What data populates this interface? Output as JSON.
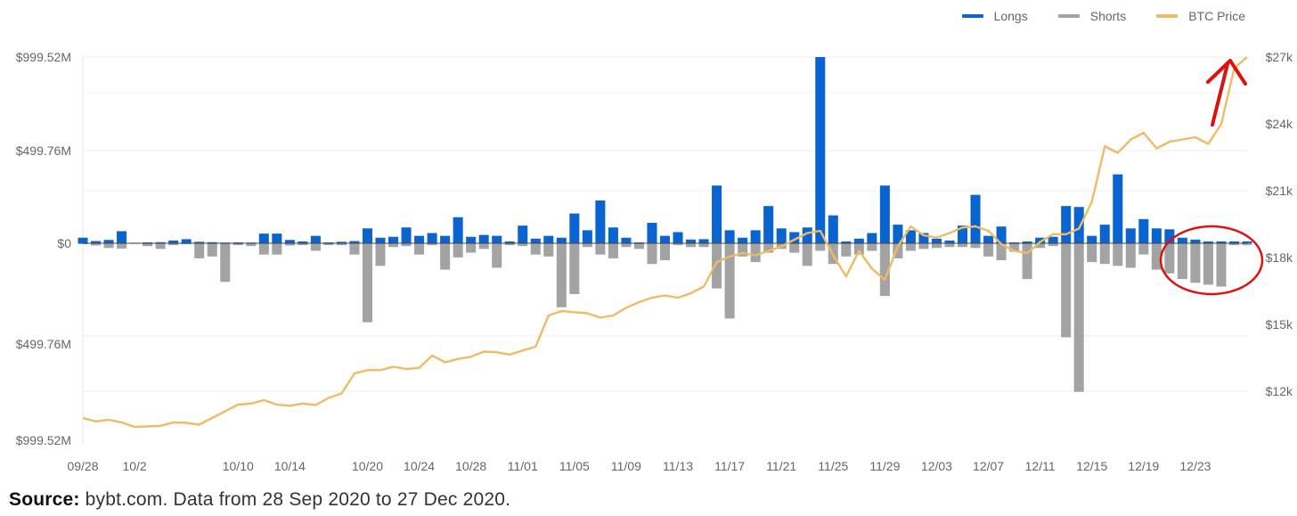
{
  "legend": {
    "longs": "Longs",
    "shorts": "Shorts",
    "btc": "BTC Price"
  },
  "colors": {
    "longs": "#0a64d0",
    "shorts": "#a3a3a3",
    "btc": "#eebb66",
    "annotation": "#e01010"
  },
  "source": {
    "label": "Source:",
    "text": "bybt.com. Data from 28 Sep 2020 to 27 Dec 2020."
  },
  "chart_data": {
    "type": "bar",
    "x": [
      "09/28",
      "09/29",
      "09/30",
      "10/1",
      "10/2",
      "10/3",
      "10/4",
      "10/5",
      "10/6",
      "10/7",
      "10/8",
      "10/9",
      "10/10",
      "10/11",
      "10/12",
      "10/13",
      "10/14",
      "10/15",
      "10/16",
      "10/17",
      "10/18",
      "10/19",
      "10/20",
      "10/21",
      "10/22",
      "10/23",
      "10/24",
      "10/25",
      "10/26",
      "10/27",
      "10/28",
      "10/29",
      "10/30",
      "10/31",
      "11/01",
      "11/02",
      "11/03",
      "11/04",
      "11/05",
      "11/06",
      "11/07",
      "11/08",
      "11/09",
      "11/10",
      "11/11",
      "11/12",
      "11/13",
      "11/14",
      "11/15",
      "11/16",
      "11/17",
      "11/18",
      "11/19",
      "11/20",
      "11/21",
      "11/22",
      "11/23",
      "11/24",
      "11/25",
      "11/26",
      "11/27",
      "11/28",
      "11/29",
      "11/30",
      "12/01",
      "12/02",
      "12/03",
      "12/04",
      "12/05",
      "12/06",
      "12/07",
      "12/08",
      "12/09",
      "12/10",
      "12/11",
      "12/12",
      "12/13",
      "12/14",
      "12/15",
      "12/16",
      "12/17",
      "12/18",
      "12/19",
      "12/20",
      "12/21",
      "12/22",
      "12/23",
      "12/24",
      "12/25",
      "12/26",
      "12/27"
    ],
    "x_tick_labels": [
      "09/28",
      "10/2",
      "10/10",
      "10/14",
      "10/20",
      "10/24",
      "10/28",
      "11/01",
      "11/05",
      "11/09",
      "11/13",
      "11/17",
      "11/21",
      "11/25",
      "11/29",
      "12/03",
      "12/07",
      "12/11",
      "12/15",
      "12/19",
      "12/23"
    ],
    "y_left_tick_labels": [
      "$999.52M",
      "$499.76M",
      "$0",
      "$499.76M",
      "$999.52M"
    ],
    "y_right_tick_labels": [
      "$27k",
      "$24k",
      "$21k",
      "$18k",
      "$15k",
      "$12k"
    ],
    "ylim_left": [
      -1050,
      1000
    ],
    "ylim_right": [
      10000,
      27000
    ],
    "grid": true,
    "legend_position": "top-right",
    "series": [
      {
        "name": "Longs",
        "type": "bar",
        "values": [
          30,
          12,
          18,
          65,
          3,
          5,
          6,
          15,
          22,
          8,
          6,
          4,
          5,
          4,
          52,
          52,
          18,
          10,
          40,
          5,
          8,
          12,
          80,
          30,
          35,
          85,
          40,
          55,
          40,
          140,
          35,
          45,
          40,
          10,
          95,
          25,
          40,
          30,
          160,
          70,
          230,
          85,
          30,
          5,
          110,
          40,
          60,
          20,
          22,
          310,
          70,
          30,
          70,
          200,
          80,
          60,
          85,
          1000,
          150,
          10,
          25,
          55,
          310,
          100,
          70,
          55,
          25,
          15,
          95,
          260,
          40,
          90,
          5,
          10,
          30,
          35,
          200,
          195,
          40,
          100,
          370,
          80,
          130,
          80,
          75,
          30,
          20,
          10,
          10,
          10,
          10
        ]
      },
      {
        "name": "Shorts",
        "type": "bar",
        "values": [
          -5,
          -12,
          -25,
          -28,
          0,
          -15,
          -30,
          -10,
          -5,
          -80,
          -70,
          -205,
          -10,
          -15,
          -60,
          -60,
          -12,
          -10,
          -40,
          -10,
          -10,
          -60,
          -420,
          -120,
          -20,
          -15,
          -60,
          -10,
          -140,
          -75,
          -50,
          -30,
          -130,
          -10,
          -15,
          -60,
          -70,
          -340,
          -270,
          -20,
          -60,
          -80,
          -20,
          -30,
          -110,
          -90,
          -10,
          -20,
          -20,
          -240,
          -400,
          -70,
          -100,
          -50,
          -30,
          -50,
          -120,
          -40,
          -110,
          -70,
          -60,
          -40,
          -280,
          -80,
          -40,
          -30,
          -25,
          -20,
          -20,
          -25,
          -70,
          -90,
          -45,
          -190,
          -25,
          -15,
          -500,
          -790,
          -100,
          -110,
          -120,
          -130,
          -60,
          -140,
          -160,
          -190,
          -210,
          -220,
          -230,
          -10,
          -10
        ]
      },
      {
        "name": "BTC Price",
        "type": "line",
        "axis": "right",
        "values": [
          10800,
          10650,
          10720,
          10600,
          10400,
          10420,
          10450,
          10600,
          10580,
          10500,
          10800,
          11100,
          11400,
          11450,
          11600,
          11400,
          11350,
          11450,
          11380,
          11700,
          11900,
          12800,
          12950,
          12950,
          13100,
          13000,
          13050,
          13600,
          13300,
          13450,
          13550,
          13780,
          13750,
          13650,
          13830,
          14000,
          15400,
          15600,
          15550,
          15500,
          15300,
          15400,
          15750,
          16000,
          16200,
          16300,
          16200,
          16400,
          16700,
          17800,
          18050,
          18200,
          18100,
          18300,
          18500,
          18800,
          19100,
          19200,
          18100,
          17150,
          18300,
          17500,
          17000,
          18500,
          19400,
          19000,
          18900,
          19100,
          19350,
          19400,
          19200,
          18600,
          18300,
          18200,
          18700,
          19050,
          19050,
          19300,
          20500,
          23000,
          22700,
          23300,
          23600,
          22900,
          23200,
          23300,
          23400,
          23100,
          24000,
          26500,
          27000
        ]
      }
    ]
  }
}
